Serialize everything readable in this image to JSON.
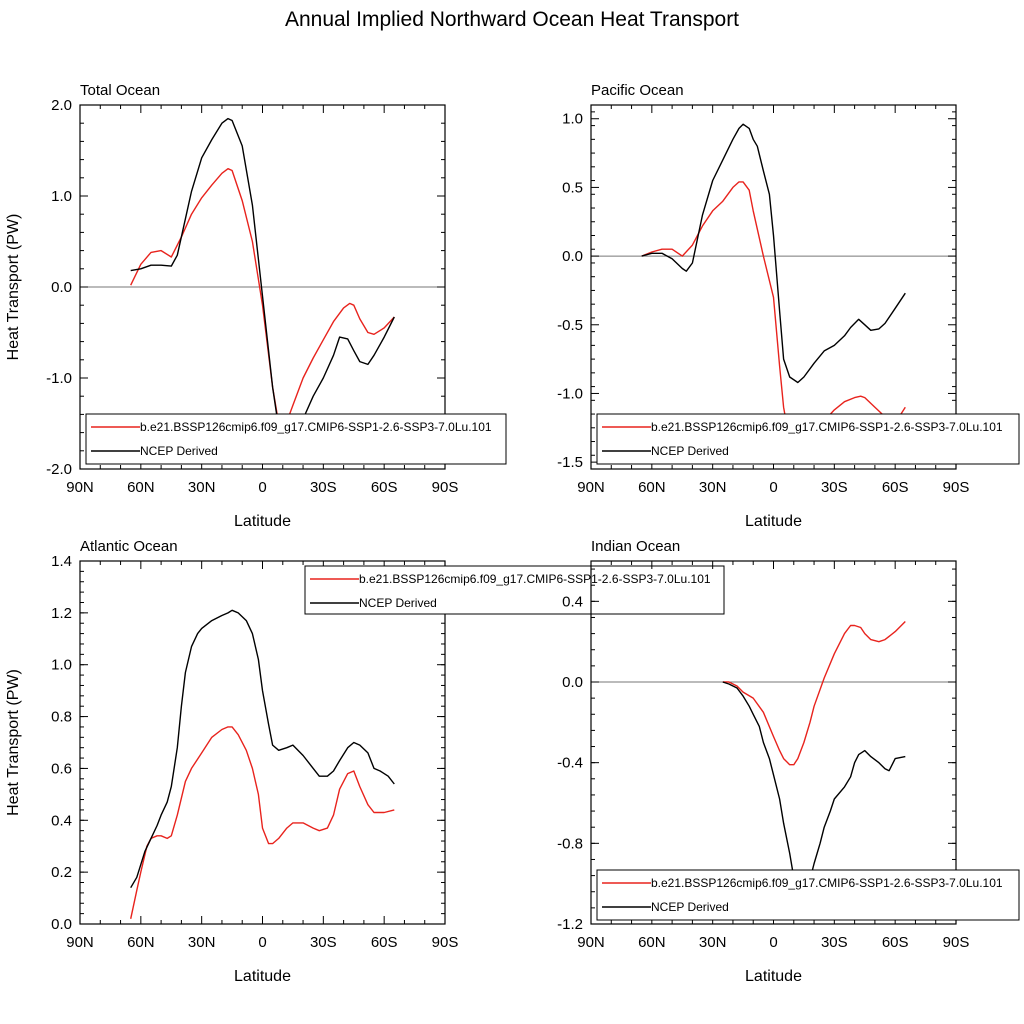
{
  "figure_title": "Annual Implied Northward Ocean Heat Transport",
  "chart_data": [
    {
      "type": "line",
      "panel": "top-left",
      "title": "Total Ocean",
      "xlabel": "Latitude",
      "ylabel": "Heat Transport (PW)",
      "xlim": [
        90,
        -90
      ],
      "ylim": [
        -2.0,
        2.0
      ],
      "x_ticks": [
        90,
        60,
        30,
        0,
        -30,
        -60,
        -90
      ],
      "x_tick_labels": [
        "90N",
        "60N",
        "30N",
        "0",
        "30S",
        "60S",
        "90S"
      ],
      "y_ticks": [
        -2.0,
        -1.0,
        0.0,
        1.0,
        2.0
      ],
      "y_tick_labels": [
        "-2.0",
        "-1.0",
        "0.0",
        "1.0",
        "2.0"
      ],
      "zero_line": true,
      "legend_position": "bottom",
      "series": [
        {
          "name": "b.e21.BSSP126cmip6.f09_g17.CMIP6-SSP1-2.6-SSP3-7.0Lu.101",
          "color": "#e8231d",
          "x": [
            65,
            60,
            55,
            50,
            45,
            40,
            35,
            30,
            25,
            20,
            17,
            15,
            10,
            5,
            0,
            -5,
            -8,
            -12,
            -15,
            -20,
            -25,
            -30,
            -35,
            -40,
            -43,
            -45,
            -48,
            -52,
            -55,
            -60,
            -65
          ],
          "y": [
            0.02,
            0.25,
            0.38,
            0.4,
            0.33,
            0.55,
            0.8,
            0.98,
            1.12,
            1.25,
            1.3,
            1.28,
            0.95,
            0.5,
            -0.2,
            -1.1,
            -1.5,
            -1.48,
            -1.3,
            -1.0,
            -0.78,
            -0.58,
            -0.38,
            -0.23,
            -0.18,
            -0.2,
            -0.35,
            -0.5,
            -0.52,
            -0.45,
            -0.33
          ]
        },
        {
          "name": "NCEP Derived",
          "color": "#000000",
          "x": [
            65,
            60,
            55,
            50,
            45,
            42,
            38,
            35,
            30,
            25,
            20,
            17,
            15,
            10,
            5,
            0,
            -5,
            -8,
            -12,
            -15,
            -20,
            -25,
            -30,
            -35,
            -38,
            -42,
            -45,
            -48,
            -52,
            -55,
            -60,
            -65
          ],
          "y": [
            0.18,
            0.2,
            0.24,
            0.24,
            0.23,
            0.35,
            0.75,
            1.05,
            1.42,
            1.62,
            1.8,
            1.85,
            1.83,
            1.55,
            0.9,
            -0.1,
            -1.1,
            -1.55,
            -1.65,
            -1.6,
            -1.45,
            -1.2,
            -1.0,
            -0.75,
            -0.55,
            -0.57,
            -0.7,
            -0.82,
            -0.85,
            -0.75,
            -0.55,
            -0.33
          ]
        }
      ]
    },
    {
      "type": "line",
      "panel": "top-right",
      "title": "Pacific Ocean",
      "xlabel": "Latitude",
      "ylabel": "",
      "xlim": [
        90,
        -90
      ],
      "ylim": [
        -1.55,
        1.1
      ],
      "x_ticks": [
        90,
        60,
        30,
        0,
        -30,
        -60,
        -90
      ],
      "x_tick_labels": [
        "90N",
        "60N",
        "30N",
        "0",
        "30S",
        "60S",
        "90S"
      ],
      "y_ticks": [
        -1.5,
        -1.0,
        -0.5,
        0.0,
        0.5,
        1.0
      ],
      "y_tick_labels": [
        "-1.5",
        "-1.0",
        "-0.5",
        "0.0",
        "0.5",
        "1.0"
      ],
      "zero_line": true,
      "legend_position": "bottom",
      "series": [
        {
          "name": "b.e21.BSSP126cmip6.f09_g17.CMIP6-SSP1-2.6-SSP3-7.0Lu.101",
          "color": "#e8231d",
          "x": [
            65,
            60,
            55,
            50,
            45,
            40,
            35,
            30,
            25,
            20,
            17,
            15,
            12,
            10,
            5,
            0,
            -3,
            -5,
            -8,
            -10,
            -12,
            -15,
            -20,
            -25,
            -30,
            -35,
            -40,
            -43,
            -45,
            -50,
            -55,
            -58,
            -62,
            -65
          ],
          "y": [
            0.0,
            0.03,
            0.05,
            0.05,
            0.0,
            0.08,
            0.22,
            0.33,
            0.4,
            0.5,
            0.54,
            0.54,
            0.48,
            0.33,
            0.0,
            -0.3,
            -0.8,
            -1.1,
            -1.35,
            -1.45,
            -1.45,
            -1.38,
            -1.28,
            -1.2,
            -1.12,
            -1.06,
            -1.03,
            -1.02,
            -1.03,
            -1.1,
            -1.17,
            -1.2,
            -1.17,
            -1.1
          ]
        },
        {
          "name": "NCEP Derived",
          "color": "#000000",
          "x": [
            65,
            60,
            55,
            50,
            45,
            43,
            40,
            35,
            30,
            25,
            20,
            17,
            15,
            12,
            10,
            8,
            5,
            2,
            0,
            -3,
            -5,
            -8,
            -12,
            -15,
            -20,
            -25,
            -30,
            -35,
            -38,
            -42,
            -45,
            -48,
            -52,
            -55,
            -60,
            -65
          ],
          "y": [
            0.0,
            0.02,
            0.02,
            -0.02,
            -0.09,
            -0.11,
            -0.05,
            0.3,
            0.55,
            0.7,
            0.85,
            0.93,
            0.96,
            0.93,
            0.85,
            0.8,
            0.62,
            0.45,
            0.15,
            -0.4,
            -0.75,
            -0.88,
            -0.92,
            -0.88,
            -0.78,
            -0.69,
            -0.65,
            -0.58,
            -0.52,
            -0.46,
            -0.5,
            -0.54,
            -0.53,
            -0.49,
            -0.38,
            -0.27
          ]
        }
      ]
    },
    {
      "type": "line",
      "panel": "bottom-left",
      "title": "Atlantic Ocean",
      "xlabel": "Latitude",
      "ylabel": "Heat Transport (PW)",
      "xlim": [
        90,
        -90
      ],
      "ylim": [
        0.0,
        1.4
      ],
      "x_ticks": [
        90,
        60,
        30,
        0,
        -30,
        -60,
        -90
      ],
      "x_tick_labels": [
        "90N",
        "60N",
        "30N",
        "0",
        "30S",
        "60S",
        "90S"
      ],
      "y_ticks": [
        0.0,
        0.2,
        0.4,
        0.6,
        0.8,
        1.0,
        1.2,
        1.4
      ],
      "y_tick_labels": [
        "0.0",
        "0.2",
        "0.4",
        "0.6",
        "0.8",
        "1.0",
        "1.2",
        "1.4"
      ],
      "zero_line": false,
      "legend_position": "top",
      "series": [
        {
          "name": "b.e21.BSSP126cmip6.f09_g17.CMIP6-SSP1-2.6-SSP3-7.0Lu.101",
          "color": "#e8231d",
          "x": [
            65,
            62,
            60,
            57,
            55,
            52,
            50,
            47,
            45,
            42,
            38,
            35,
            30,
            25,
            20,
            17,
            15,
            12,
            8,
            5,
            2,
            0,
            -3,
            -5,
            -8,
            -12,
            -15,
            -20,
            -25,
            -28,
            -32,
            -35,
            -38,
            -42,
            -45,
            -48,
            -52,
            -55,
            -60,
            -65
          ],
          "y": [
            0.02,
            0.13,
            0.2,
            0.3,
            0.33,
            0.34,
            0.34,
            0.33,
            0.34,
            0.42,
            0.55,
            0.6,
            0.66,
            0.72,
            0.75,
            0.76,
            0.76,
            0.73,
            0.67,
            0.6,
            0.5,
            0.37,
            0.31,
            0.31,
            0.33,
            0.37,
            0.39,
            0.39,
            0.37,
            0.36,
            0.37,
            0.42,
            0.52,
            0.58,
            0.59,
            0.53,
            0.46,
            0.43,
            0.43,
            0.44
          ]
        },
        {
          "name": "NCEP Derived",
          "color": "#000000",
          "x": [
            65,
            62,
            58,
            55,
            52,
            50,
            47,
            45,
            42,
            40,
            38,
            35,
            32,
            30,
            25,
            20,
            17,
            15,
            12,
            8,
            5,
            2,
            0,
            -3,
            -5,
            -8,
            -12,
            -15,
            -20,
            -25,
            -28,
            -32,
            -35,
            -38,
            -42,
            -45,
            -48,
            -52,
            -55,
            -58,
            -62,
            -65
          ],
          "y": [
            0.14,
            0.18,
            0.28,
            0.33,
            0.38,
            0.42,
            0.47,
            0.53,
            0.68,
            0.84,
            0.97,
            1.07,
            1.12,
            1.14,
            1.17,
            1.19,
            1.2,
            1.21,
            1.2,
            1.17,
            1.12,
            1.02,
            0.9,
            0.77,
            0.69,
            0.67,
            0.68,
            0.69,
            0.65,
            0.6,
            0.57,
            0.57,
            0.59,
            0.63,
            0.68,
            0.7,
            0.69,
            0.66,
            0.6,
            0.59,
            0.57,
            0.54
          ]
        }
      ]
    },
    {
      "type": "line",
      "panel": "bottom-right",
      "title": "Indian Ocean",
      "xlabel": "Latitude",
      "ylabel": "",
      "xlim": [
        90,
        -90
      ],
      "ylim": [
        -1.2,
        0.6
      ],
      "x_ticks": [
        90,
        60,
        30,
        0,
        -30,
        -60,
        -90
      ],
      "x_tick_labels": [
        "90N",
        "60N",
        "30N",
        "0",
        "30S",
        "60S",
        "90S"
      ],
      "y_ticks": [
        -1.2,
        -0.8,
        -0.4,
        0.0,
        0.4
      ],
      "y_tick_labels": [
        "-1.2",
        "-0.8",
        "-0.4",
        "0.0",
        "0.4"
      ],
      "zero_line": true,
      "legend_position": "bottom",
      "series": [
        {
          "name": "b.e21.BSSP126cmip6.f09_g17.CMIP6-SSP1-2.6-SSP3-7.0Lu.101",
          "color": "#e8231d",
          "x": [
            25,
            22,
            18,
            15,
            10,
            5,
            0,
            -3,
            -5,
            -8,
            -10,
            -12,
            -15,
            -18,
            -20,
            -25,
            -30,
            -35,
            -38,
            -40,
            -43,
            -45,
            -48,
            -52,
            -55,
            -60,
            -65
          ],
          "y": [
            0.0,
            0.0,
            -0.02,
            -0.05,
            -0.08,
            -0.15,
            -0.27,
            -0.34,
            -0.38,
            -0.41,
            -0.41,
            -0.38,
            -0.3,
            -0.2,
            -0.12,
            0.02,
            0.14,
            0.24,
            0.28,
            0.28,
            0.27,
            0.24,
            0.21,
            0.2,
            0.21,
            0.25,
            0.3
          ]
        },
        {
          "name": "NCEP Derived",
          "color": "#000000",
          "x": [
            25,
            22,
            18,
            15,
            12,
            10,
            7,
            5,
            2,
            0,
            -3,
            -5,
            -8,
            -10,
            -12,
            -15,
            -18,
            -20,
            -23,
            -25,
            -28,
            -30,
            -35,
            -38,
            -40,
            -42,
            -45,
            -48,
            -52,
            -55,
            -57,
            -60,
            -65
          ],
          "y": [
            0.0,
            -0.01,
            -0.03,
            -0.07,
            -0.12,
            -0.16,
            -0.22,
            -0.3,
            -0.38,
            -0.46,
            -0.58,
            -0.7,
            -0.85,
            -0.97,
            -1.03,
            -1.04,
            -0.98,
            -0.9,
            -0.8,
            -0.72,
            -0.64,
            -0.58,
            -0.52,
            -0.47,
            -0.4,
            -0.36,
            -0.34,
            -0.37,
            -0.4,
            -0.43,
            -0.44,
            -0.38,
            -0.37
          ]
        }
      ]
    }
  ]
}
